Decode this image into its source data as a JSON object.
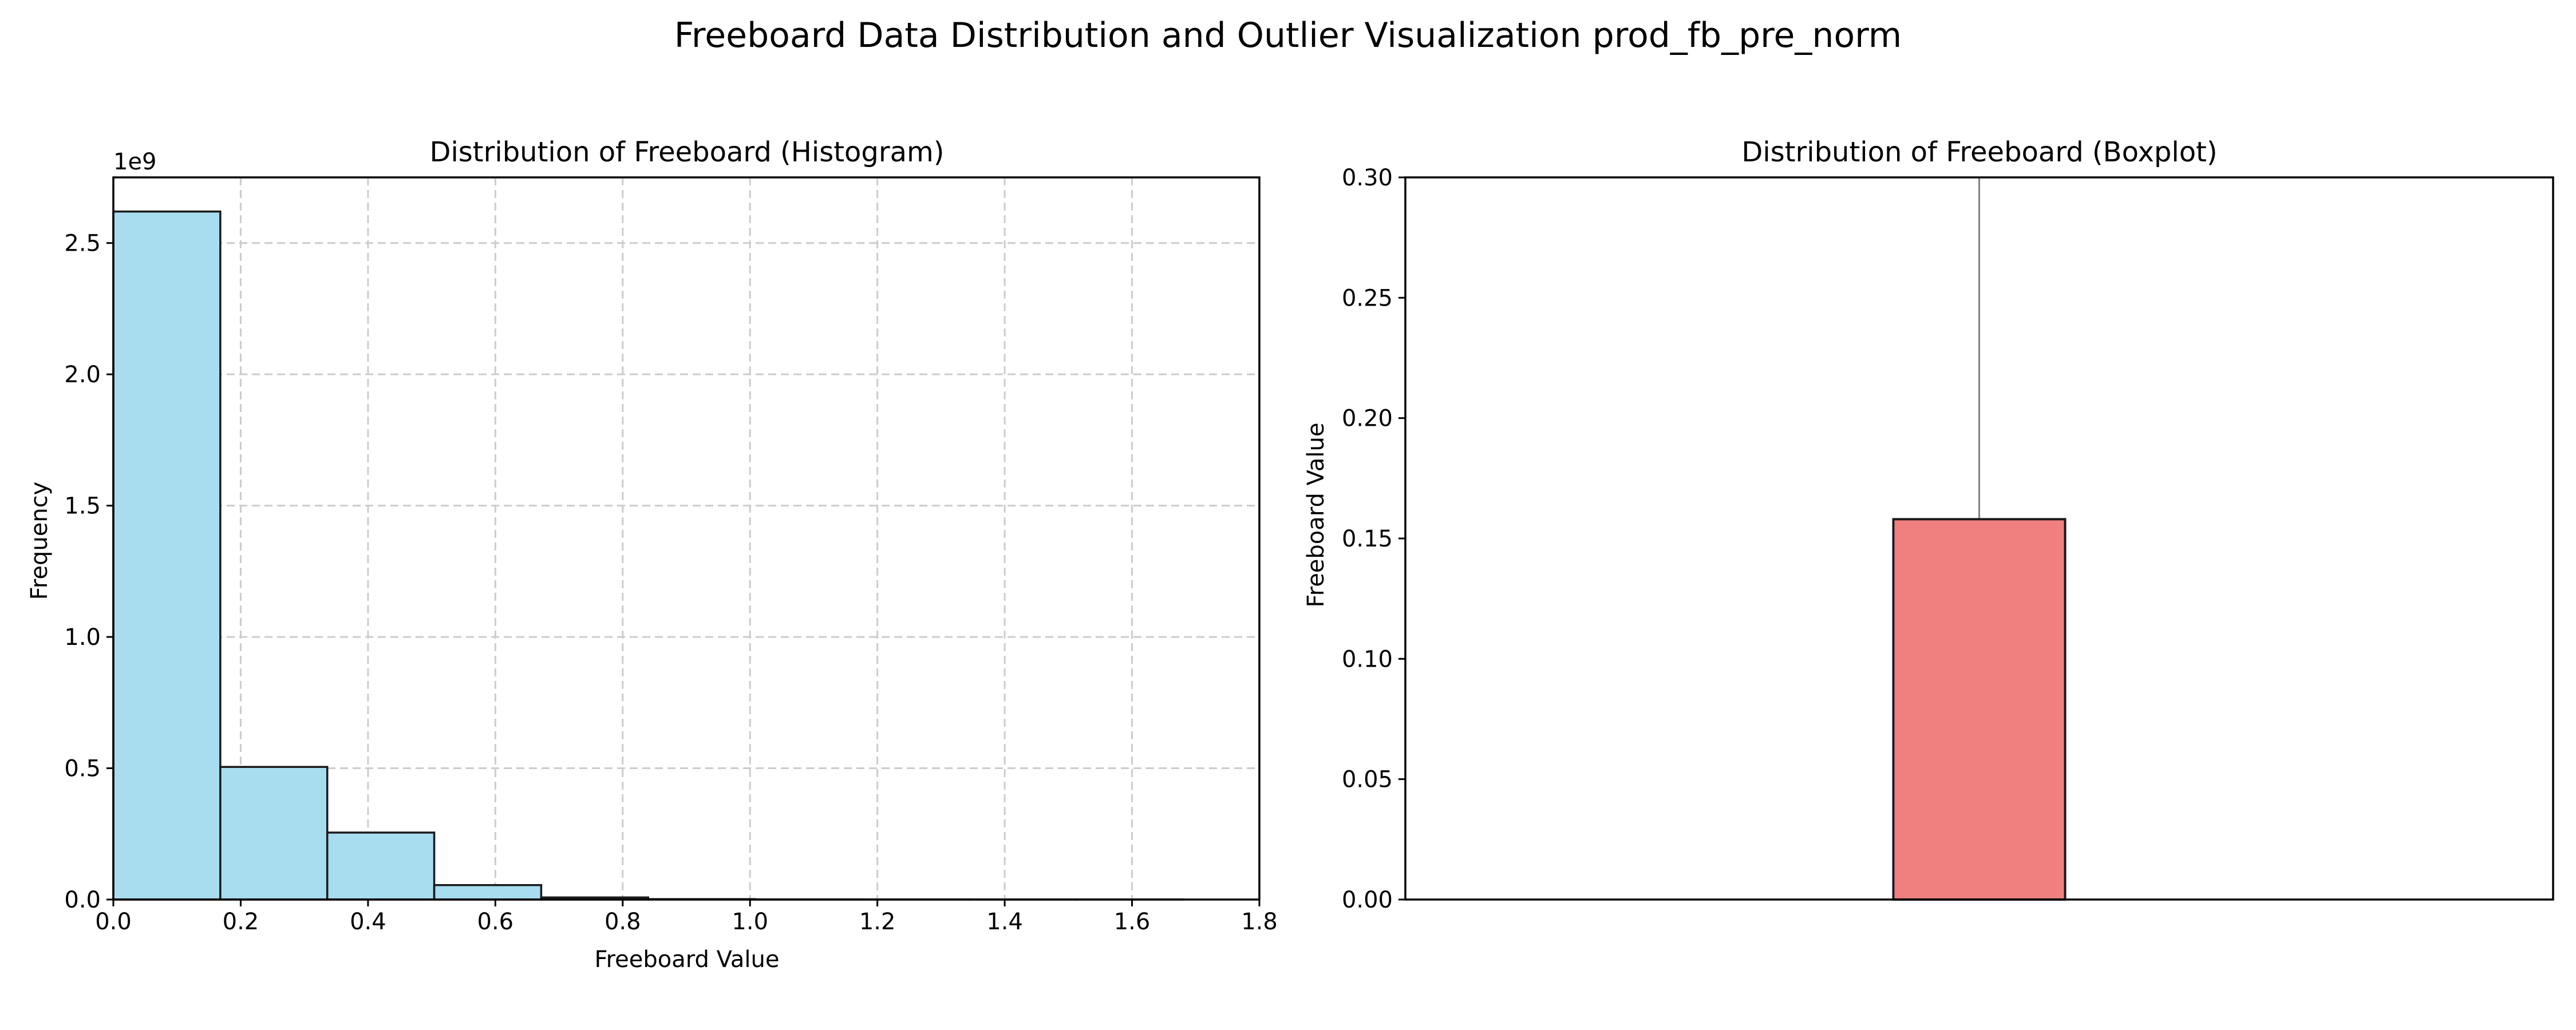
{
  "figure": {
    "title": "Freeboard Data Distribution and Outlier Visualization prod_fb_pre_norm"
  },
  "chart_data": [
    {
      "type": "bar",
      "subtype": "histogram",
      "title": "Distribution of Freeboard (Histogram)",
      "xlabel": "Freeboard Value",
      "ylabel": "Frequency",
      "y_offset_label": "1e9",
      "xlim": [
        0.0,
        1.8
      ],
      "ylim": [
        0.0,
        2750000000.0
      ],
      "x_ticks": [
        0.0,
        0.2,
        0.4,
        0.6,
        0.8,
        1.0,
        1.2,
        1.4,
        1.6,
        1.8
      ],
      "x_tick_labels": [
        "0.0",
        "0.2",
        "0.4",
        "0.6",
        "0.8",
        "1.0",
        "1.2",
        "1.4",
        "1.6",
        "1.8"
      ],
      "y_ticks": [
        0.0,
        500000000.0,
        1000000000.0,
        1500000000.0,
        2000000000.0,
        2500000000.0
      ],
      "y_tick_labels": [
        "0.0",
        "0.5",
        "1.0",
        "1.5",
        "2.0",
        "2.5"
      ],
      "grid": true,
      "bar_color": "#a8dcef",
      "edge_color": "#1a1a1a",
      "grid_color": "#cccccc",
      "bins": [
        {
          "x0": 0.0,
          "x1": 0.168,
          "count": 2620000000
        },
        {
          "x0": 0.168,
          "x1": 0.336,
          "count": 505000000
        },
        {
          "x0": 0.336,
          "x1": 0.504,
          "count": 255000000
        },
        {
          "x0": 0.504,
          "x1": 0.672,
          "count": 55000000
        },
        {
          "x0": 0.672,
          "x1": 0.84,
          "count": 8000000
        },
        {
          "x0": 0.84,
          "x1": 1.008,
          "count": 1500000
        },
        {
          "x0": 1.008,
          "x1": 1.176,
          "count": 500000
        },
        {
          "x0": 1.176,
          "x1": 1.344,
          "count": 200000
        },
        {
          "x0": 1.344,
          "x1": 1.512,
          "count": 100000
        },
        {
          "x0": 1.512,
          "x1": 1.68,
          "count": 50000
        }
      ]
    },
    {
      "type": "boxplot",
      "title": "Distribution of Freeboard (Boxplot)",
      "xlabel": "",
      "ylabel": "Freeboard Value",
      "ylim": [
        0.0,
        0.3
      ],
      "y_ticks": [
        0.0,
        0.05,
        0.1,
        0.15,
        0.2,
        0.25,
        0.3
      ],
      "y_tick_labels": [
        "0.00",
        "0.05",
        "0.10",
        "0.15",
        "0.20",
        "0.25",
        "0.30"
      ],
      "grid": false,
      "box_color": "#f08080",
      "edge_color": "#1a1a1a",
      "whisker_color": "#808080",
      "box": {
        "q1": 0.0,
        "median": 0.0,
        "q3": 0.158,
        "whisker_high": 0.3
      }
    }
  ]
}
